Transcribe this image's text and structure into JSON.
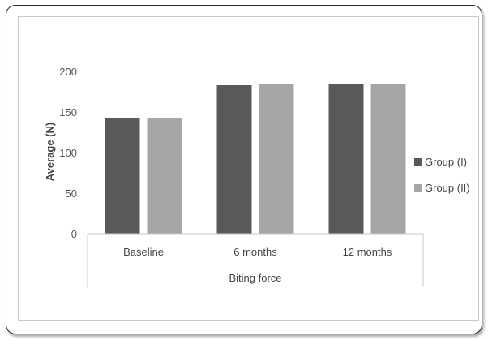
{
  "colors": {
    "group1": "#595959",
    "group2": "#a6a6a6",
    "axis": "#c8c8c8"
  },
  "chart_data": {
    "type": "bar",
    "title": "",
    "xlabel": "Biting force",
    "ylabel": "Average (N)",
    "ylim": [
      0,
      200
    ],
    "yticks": [
      "0",
      "50",
      "100",
      "150",
      "200"
    ],
    "grid": false,
    "legend_position": "right",
    "categories": [
      "Baseline",
      "6 months",
      "12 months"
    ],
    "series": [
      {
        "name": "Group (I)",
        "values": [
          143,
          183,
          185
        ]
      },
      {
        "name": "Group (II)",
        "values": [
          142,
          184,
          185
        ]
      }
    ]
  }
}
